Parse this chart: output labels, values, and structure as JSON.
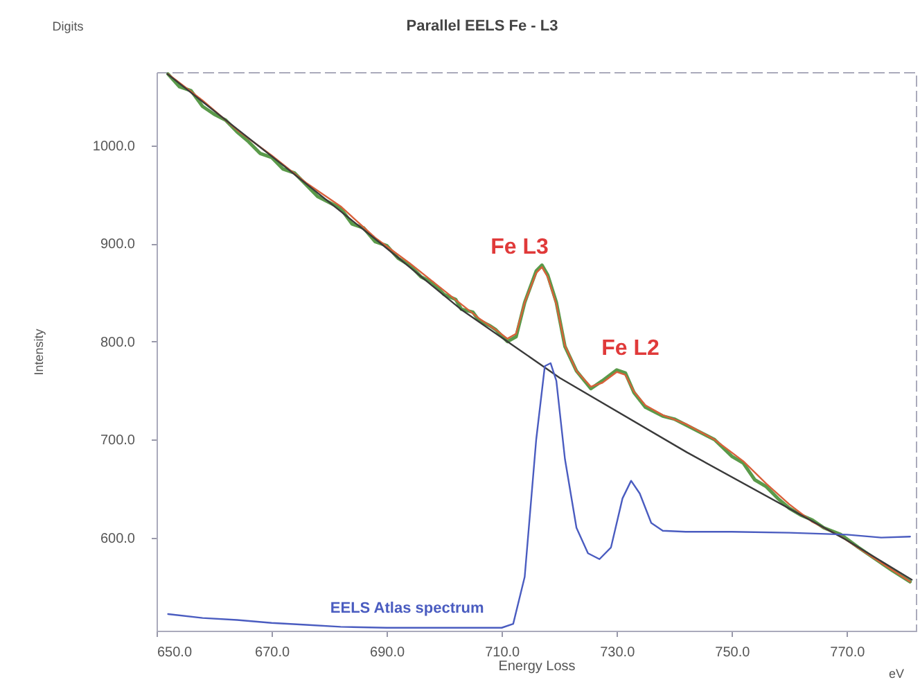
{
  "chart_data": {
    "type": "line",
    "title": "Parallel EELS Fe - L3",
    "xlabel": "Energy Loss",
    "ylabel": "Intensity",
    "annotations": [
      "Digits",
      "eV",
      "Fe L3",
      "Fe L2"
    ],
    "xlim": [
      650,
      782
    ],
    "ylim": [
      505,
      1075
    ],
    "xticks": [
      {
        "value": 650,
        "label": "650.0"
      },
      {
        "value": 670,
        "label": "670.0"
      },
      {
        "value": 690,
        "label": "690.0"
      },
      {
        "value": 710,
        "label": "710.0"
      },
      {
        "value": 730,
        "label": "730.0"
      },
      {
        "value": 750,
        "label": "750.0"
      },
      {
        "value": 770,
        "label": "770.0"
      }
    ],
    "yticks": [
      {
        "value": 600,
        "label": "600.0"
      },
      {
        "value": 700,
        "label": "700.0"
      },
      {
        "value": 800,
        "label": "800.0"
      },
      {
        "value": 900,
        "label": "900.0"
      },
      {
        "value": 1000,
        "label": "1000.0"
      }
    ],
    "grid": false,
    "line_style": "solid",
    "series": [
      {
        "color": "#5a9a4a",
        "x": [
          652,
          654,
          656,
          658,
          660,
          662,
          664,
          666,
          668,
          670,
          672,
          674,
          676,
          678,
          680,
          682,
          684,
          686,
          688,
          690,
          692,
          694,
          696,
          698,
          700,
          702,
          703,
          705,
          706,
          708,
          709,
          711,
          712.5,
          714,
          716,
          717,
          718,
          719.5,
          721,
          723,
          725.5,
          727.5,
          730,
          731.5,
          733,
          735,
          738,
          740,
          742,
          745,
          747,
          750,
          752,
          754,
          756,
          758,
          760,
          762,
          764,
          766,
          769,
          772,
          775,
          778,
          781
        ],
        "values": [
          1073,
          1060,
          1056,
          1040,
          1032,
          1026,
          1014,
          1004,
          992,
          988,
          976,
          972,
          960,
          948,
          942,
          936,
          920,
          916,
          902,
          898,
          885,
          878,
          866,
          860,
          848,
          843,
          833,
          830,
          822,
          816,
          812,
          800,
          805,
          840,
          872,
          878,
          868,
          840,
          795,
          770,
          752,
          760,
          771,
          768,
          748,
          733,
          724,
          721,
          715,
          706,
          700,
          683,
          676,
          659,
          652,
          640,
          630,
          623,
          618,
          610,
          603,
          590,
          578,
          566,
          555
        ]
      },
      {
        "color": "#d9603a",
        "x": [
          652,
          658,
          664,
          670,
          676,
          682,
          688,
          694,
          700,
          706,
          709,
          711,
          712.5,
          714,
          716,
          717,
          718,
          719.5,
          721,
          723,
          725.5,
          727.5,
          730,
          731.5,
          733,
          735,
          738,
          742,
          747,
          752,
          756,
          760,
          764,
          769,
          775,
          781
        ],
        "values": [
          1073,
          1046,
          1016,
          990,
          962,
          938,
          906,
          880,
          852,
          824,
          812,
          803,
          808,
          840,
          870,
          876,
          866,
          838,
          796,
          770,
          754,
          758,
          769,
          766,
          749,
          735,
          725,
          716,
          700,
          678,
          655,
          634,
          616,
          601,
          578,
          555
        ]
      },
      {
        "color": "#3a3a3a",
        "x": [
          651.9,
          672.4,
          688.8,
          702.9,
          720.1,
          742.2,
          769.5,
          781.3
        ],
        "values": [
          1073,
          978,
          901,
          833,
          763,
          687,
          599,
          557
        ]
      },
      {
        "name": "EELS Atlas spectrum",
        "color": "#4a5cc0",
        "x": [
          652,
          658,
          664,
          670,
          676,
          682,
          690,
          700,
          710,
          712,
          714,
          716,
          717.5,
          718.5,
          719.5,
          721,
          723,
          725,
          727,
          729,
          731,
          732.5,
          734,
          736,
          738,
          742,
          750,
          760,
          770,
          776,
          781
        ],
        "values": [
          522,
          518,
          516,
          513,
          511,
          509,
          508,
          508,
          508,
          512,
          560,
          700,
          775,
          778,
          760,
          680,
          610,
          584,
          578,
          590,
          640,
          658,
          645,
          615,
          607,
          606,
          606,
          605,
          603,
          600,
          601
        ]
      }
    ]
  }
}
